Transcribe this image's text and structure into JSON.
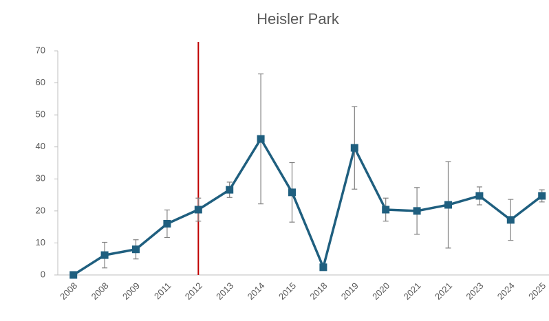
{
  "chart_data": {
    "type": "line",
    "title": "Heisler Park",
    "categories": [
      "2008",
      "2008",
      "2009",
      "2011",
      "2012",
      "2013",
      "2014",
      "2015",
      "2018",
      "2019",
      "2020",
      "2021",
      "2021",
      "2023",
      "2024",
      "2025"
    ],
    "series": [
      {
        "color": "#1f5f7f",
        "values": [
          0,
          6.2,
          8,
          16,
          20.4,
          26.6,
          42.5,
          25.8,
          2.4,
          39.7,
          20.4,
          20,
          21.9,
          24.7,
          17.2,
          24.7
        ],
        "errors": [
          null,
          4,
          3,
          4.3,
          3.6,
          2.4,
          20.3,
          9.3,
          null,
          12.9,
          3.6,
          7.3,
          13.5,
          2.8,
          6.4,
          1.9
        ],
        "error_color": "#808080"
      }
    ],
    "ylim": [
      0,
      70
    ],
    "yticks": [
      0,
      10,
      20,
      30,
      40,
      50,
      60,
      70
    ],
    "vline": {
      "at": "2012",
      "color": "#c00000"
    }
  }
}
